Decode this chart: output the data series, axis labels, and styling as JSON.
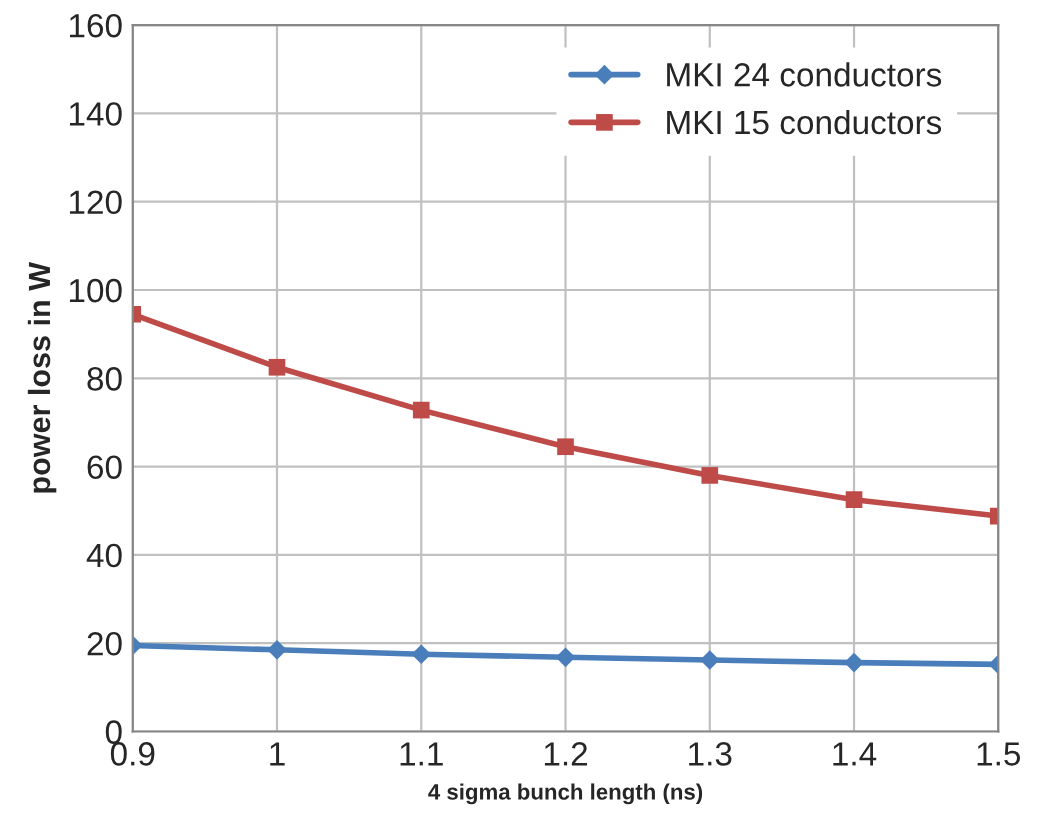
{
  "chart_data": {
    "type": "line",
    "xlabel": "4 sigma bunch length (ns)",
    "ylabel": "power loss in W",
    "x": [
      0.9,
      1.0,
      1.1,
      1.2,
      1.3,
      1.4,
      1.5
    ],
    "series": [
      {
        "name": "MKI 24 conductors",
        "color": "#4a7ebb",
        "marker": "diamond",
        "values": [
          19.5,
          18.5,
          17.5,
          16.8,
          16.2,
          15.6,
          15.2
        ]
      },
      {
        "name": "MKI 15 conductors",
        "color": "#be4b48",
        "marker": "square",
        "values": [
          94.5,
          82.5,
          72.8,
          64.5,
          58.0,
          52.5,
          48.8
        ]
      }
    ],
    "xlim": [
      0.9,
      1.5
    ],
    "xticks": [
      {
        "value": 0.9,
        "label": "0.9"
      },
      {
        "value": 1.0,
        "label": "1"
      },
      {
        "value": 1.1,
        "label": "1.1"
      },
      {
        "value": 1.2,
        "label": "1.2"
      },
      {
        "value": 1.3,
        "label": "1.3"
      },
      {
        "value": 1.4,
        "label": "1.4"
      },
      {
        "value": 1.5,
        "label": "1.5"
      }
    ],
    "ylim": [
      0,
      160
    ],
    "yticks": [
      0,
      20,
      40,
      60,
      80,
      100,
      120,
      140,
      160
    ],
    "grid": true,
    "legend": "top right",
    "line_style": "solid"
  }
}
